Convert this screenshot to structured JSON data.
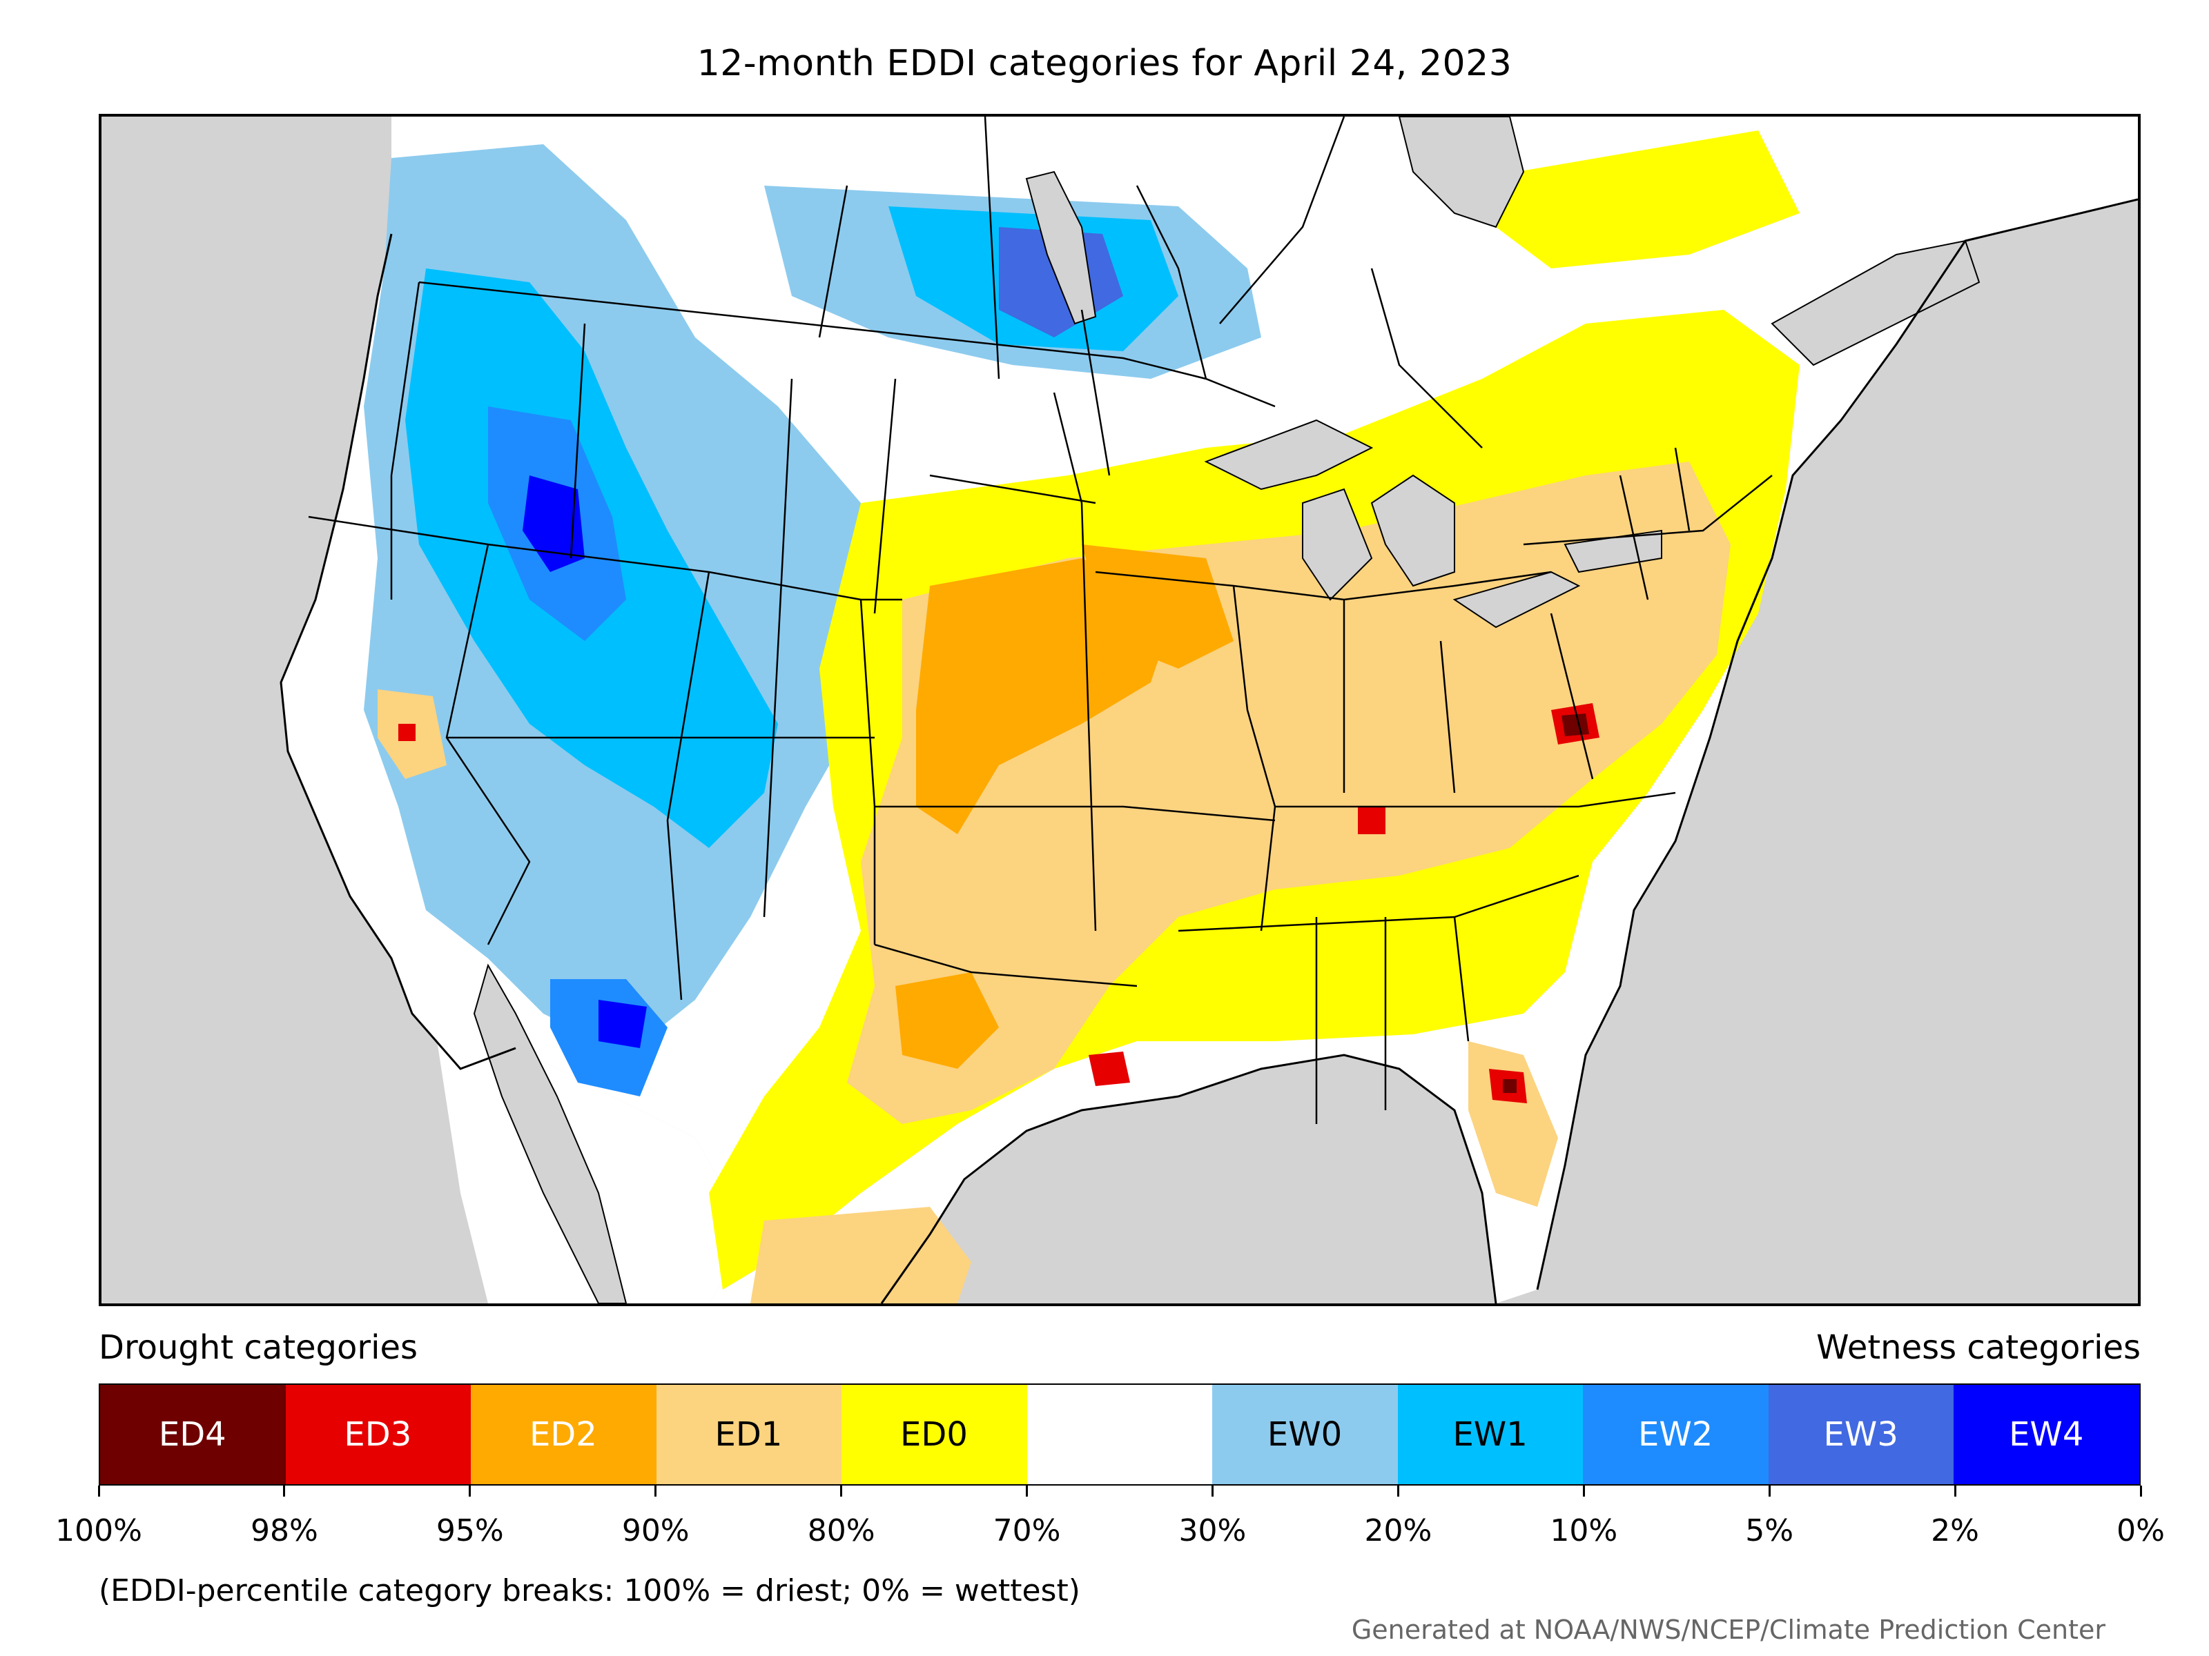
{
  "title": "12-month EDDI categories for April 24, 2023",
  "colors": {
    "land_background": "#ffffff",
    "water": "#d3d3d3",
    "border": "#000000"
  },
  "legend": {
    "drought_heading": "Drought categories",
    "wetness_heading": "Wetness categories",
    "categories": [
      {
        "label": "ED4",
        "color": "#6e0000",
        "text_color": "#ffffff"
      },
      {
        "label": "ED3",
        "color": "#e60000",
        "text_color": "#ffffff"
      },
      {
        "label": "ED2",
        "color": "#ffaa00",
        "text_color": "#ffffff"
      },
      {
        "label": "ED1",
        "color": "#fcd37f",
        "text_color": "#000000"
      },
      {
        "label": "ED0",
        "color": "#ffff00",
        "text_color": "#000000"
      },
      {
        "label": "",
        "color": "#ffffff",
        "text_color": "#000000"
      },
      {
        "label": "EW0",
        "color": "#8ccbee",
        "text_color": "#000000"
      },
      {
        "label": "EW1",
        "color": "#00bfff",
        "text_color": "#000000"
      },
      {
        "label": "EW2",
        "color": "#1e8cff",
        "text_color": "#ffffff"
      },
      {
        "label": "EW3",
        "color": "#4169e1",
        "text_color": "#ffffff"
      },
      {
        "label": "EW4",
        "color": "#0000ff",
        "text_color": "#ffffff"
      }
    ],
    "tick_labels": [
      "100%",
      "98%",
      "95%",
      "90%",
      "80%",
      "70%",
      "30%",
      "20%",
      "10%",
      "5%",
      "2%",
      "0%"
    ]
  },
  "note": "(EDDI-percentile category breaks: 100% = driest; 0% = wettest)",
  "credit": "Generated at NOAA/NWS/NCEP/Climate Prediction Center"
}
